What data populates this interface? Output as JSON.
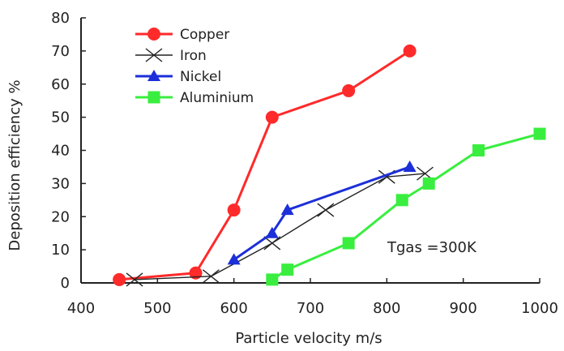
{
  "chart_data": {
    "type": "line",
    "title": "",
    "xlabel": "Particle velocity  m/s",
    "ylabel": "Deposition efficiency  %",
    "xlim": [
      400,
      1000
    ],
    "ylim": [
      0,
      80
    ],
    "xticks": [
      400,
      500,
      600,
      700,
      800,
      900,
      1000
    ],
    "yticks": [
      0,
      10,
      20,
      30,
      40,
      50,
      60,
      70,
      80
    ],
    "grid": false,
    "legend_position": "top-left",
    "annotation": "Tgas =300K",
    "series": [
      {
        "name": "Copper",
        "color": "#ff2a2a",
        "marker": "circle",
        "points": [
          [
            450,
            1
          ],
          [
            550,
            3
          ],
          [
            600,
            22
          ],
          [
            650,
            50
          ],
          [
            750,
            58
          ],
          [
            830,
            70
          ]
        ]
      },
      {
        "name": "Iron",
        "color": "#222222",
        "marker": "x",
        "points": [
          [
            470,
            1
          ],
          [
            570,
            2
          ],
          [
            650,
            12
          ],
          [
            720,
            22
          ],
          [
            800,
            32
          ],
          [
            850,
            33
          ]
        ]
      },
      {
        "name": "Nickel",
        "color": "#1c2fd8",
        "marker": "triangle",
        "points": [
          [
            600,
            7
          ],
          [
            650,
            15
          ],
          [
            670,
            22
          ],
          [
            830,
            35
          ]
        ]
      },
      {
        "name": "Aluminium",
        "color": "#39ee3f",
        "marker": "square",
        "points": [
          [
            650,
            1
          ],
          [
            670,
            4
          ],
          [
            750,
            12
          ],
          [
            820,
            25
          ],
          [
            855,
            30
          ],
          [
            920,
            40
          ],
          [
            1000,
            45
          ]
        ]
      }
    ]
  }
}
